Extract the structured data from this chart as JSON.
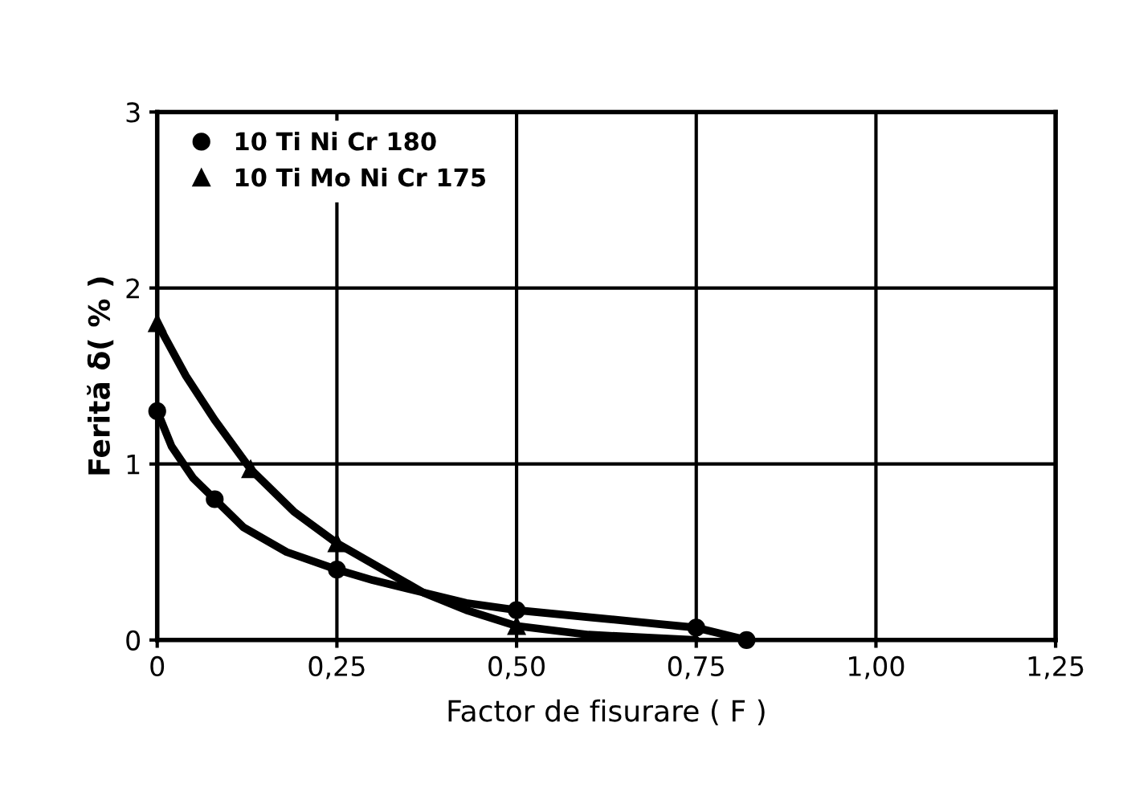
{
  "chart_data": {
    "type": "line",
    "xlabel": "Factor de fisurare ( F )",
    "ylabel": "Ferită δ( % )",
    "xlim": [
      0,
      1.25
    ],
    "ylim": [
      0,
      3
    ],
    "xticks": [
      0,
      {
        "value": 0.25,
        "label": "0,25"
      },
      {
        "value": 0.5,
        "label": "0,50"
      },
      {
        "value": 0.75,
        "label": "0,75"
      },
      {
        "value": 1.0,
        "label": "1,00"
      },
      {
        "value": 1.25,
        "label": "1,25"
      }
    ],
    "yticks": [
      0,
      1,
      2,
      3
    ],
    "grid": true,
    "legend": "top left",
    "line_style": "solid",
    "series": [
      {
        "color": "#000000",
        "x": [
          0,
          0.02,
          0.05,
          0.08,
          0.12,
          0.18,
          0.25,
          0.3,
          0.37,
          0.43,
          0.5,
          0.6,
          0.7,
          0.75,
          0.82
        ],
        "values": [
          1.3,
          1.1,
          0.92,
          0.8,
          0.64,
          0.5,
          0.4,
          0.34,
          0.27,
          0.21,
          0.17,
          0.13,
          0.09,
          0.07,
          0.0
        ]
      },
      {
        "color": "#000000",
        "x": [
          0,
          0.04,
          0.08,
          0.13,
          0.19,
          0.25,
          0.31,
          0.37,
          0.43,
          0.5,
          0.6,
          0.75
        ],
        "values": [
          1.8,
          1.5,
          1.25,
          0.97,
          0.73,
          0.55,
          0.41,
          0.27,
          0.17,
          0.08,
          0.03,
          0.0
        ]
      },
      {
        "type": "scatter",
        "name": "10 Ti Ni Cr 180",
        "color": "#000000",
        "marker": "circle",
        "x": [
          0,
          0.08,
          0.25,
          0.5,
          0.75,
          0.82
        ],
        "values": [
          1.3,
          0.8,
          0.4,
          0.17,
          0.07,
          0.0
        ]
      },
      {
        "type": "scatter",
        "name": "10 Ti Mo Ni Cr 175",
        "color": "#000000",
        "marker": "triangle",
        "x": [
          0,
          0.13,
          0.25,
          0.5
        ],
        "values": [
          1.8,
          0.97,
          0.55,
          0.08
        ]
      }
    ]
  }
}
